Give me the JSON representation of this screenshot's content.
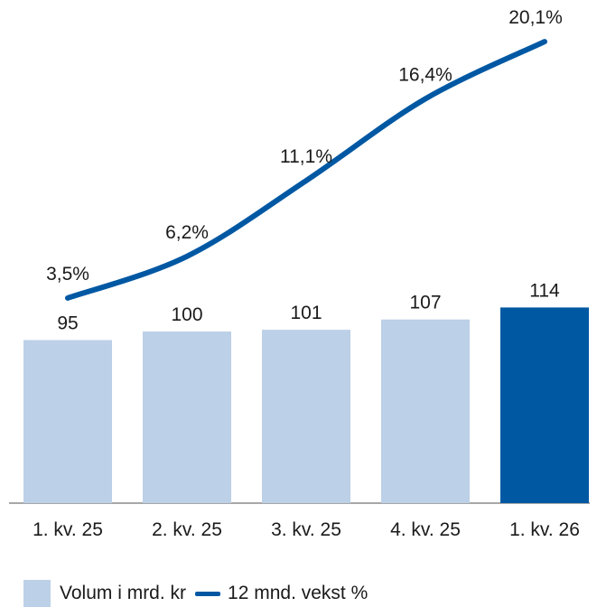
{
  "chart_data": {
    "type": "bar",
    "categories": [
      "1. kv. 25",
      "2. kv. 25",
      "3. kv. 25",
      "4. kv. 25",
      "1. kv. 26"
    ],
    "bar_series": {
      "name": "Volum i mrd. kr",
      "values": [
        95,
        100,
        101,
        107,
        114
      ],
      "value_labels": [
        "95",
        "100",
        "101",
        "107",
        "114"
      ]
    },
    "line_series": {
      "name": "12 mnd. vekst %",
      "values": [
        3.5,
        6.2,
        11.1,
        16.4,
        20.1
      ],
      "value_labels": [
        "3,5%",
        "6,2%",
        "11,1%",
        "16,4%",
        "20,1%"
      ]
    },
    "legend_position": "bottom-left",
    "grid": false
  },
  "colors": {
    "bar": "#bcd0e7",
    "bar_highlight": "#0058a3",
    "line": "#0058a3",
    "axis": "#8c8c8c"
  }
}
